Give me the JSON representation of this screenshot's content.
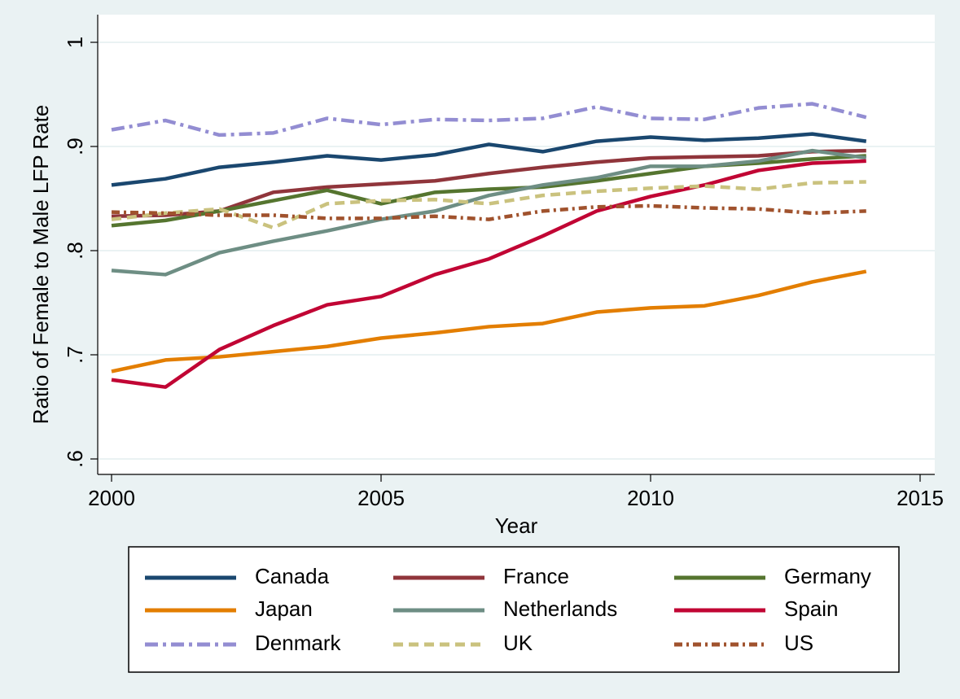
{
  "chart_data": {
    "type": "line",
    "xlabel": "Year",
    "ylabel": "Ratio of Female to Male LFP Rate",
    "x": [
      2000,
      2001,
      2002,
      2003,
      2004,
      2005,
      2006,
      2007,
      2008,
      2009,
      2010,
      2011,
      2012,
      2013,
      2014
    ],
    "xlim": [
      2000,
      2015
    ],
    "xticks": [
      2000,
      2005,
      2010,
      2015
    ],
    "ylim": [
      0.6,
      1
    ],
    "yticks": [
      {
        "value": 0.6,
        "label": ".6"
      },
      {
        "value": 0.7,
        "label": ".7"
      },
      {
        "value": 0.8,
        "label": ".8"
      },
      {
        "value": 0.9,
        "label": ".9"
      },
      1
    ],
    "grid": true,
    "legend": "bottom",
    "series": [
      {
        "name": "Canada",
        "color": "#1a476f",
        "dash": "solid",
        "values": [
          0.863,
          0.869,
          0.88,
          0.885,
          0.891,
          0.887,
          0.892,
          0.902,
          0.895,
          0.905,
          0.909,
          0.906,
          0.908,
          0.912,
          0.905
        ]
      },
      {
        "name": "France",
        "color": "#90353b",
        "dash": "solid",
        "values": [
          0.833,
          0.834,
          0.838,
          0.856,
          0.861,
          0.864,
          0.867,
          0.874,
          0.88,
          0.885,
          0.889,
          0.89,
          0.891,
          0.895,
          0.896
        ]
      },
      {
        "name": "Germany",
        "color": "#55752f",
        "dash": "solid",
        "values": [
          0.824,
          0.829,
          0.838,
          0.848,
          0.858,
          0.845,
          0.856,
          0.859,
          0.861,
          0.867,
          0.874,
          0.881,
          0.884,
          0.888,
          0.891
        ]
      },
      {
        "name": "Japan",
        "color": "#e37e00",
        "dash": "solid",
        "values": [
          0.684,
          0.695,
          0.698,
          0.703,
          0.708,
          0.716,
          0.721,
          0.727,
          0.73,
          0.741,
          0.745,
          0.747,
          0.757,
          0.77,
          0.78
        ]
      },
      {
        "name": "Netherlands",
        "color": "#6e8e84",
        "dash": "solid",
        "values": [
          0.781,
          0.777,
          0.798,
          0.809,
          0.819,
          0.83,
          0.838,
          0.853,
          0.863,
          0.87,
          0.881,
          0.881,
          0.886,
          0.896,
          0.889
        ]
      },
      {
        "name": "Spain",
        "color": "#c10534",
        "dash": "solid",
        "values": [
          0.676,
          0.669,
          0.705,
          0.728,
          0.748,
          0.756,
          0.777,
          0.792,
          0.814,
          0.838,
          0.852,
          0.863,
          0.877,
          0.884,
          0.886
        ]
      },
      {
        "name": "Denmark",
        "color": "#938dd2",
        "dash": "dash-dot",
        "values": [
          0.916,
          0.925,
          0.911,
          0.913,
          0.927,
          0.921,
          0.926,
          0.925,
          0.927,
          0.938,
          0.927,
          0.926,
          0.937,
          0.941,
          0.928
        ]
      },
      {
        "name": "UK",
        "color": "#cac27e",
        "dash": "dash",
        "values": [
          0.83,
          0.836,
          0.84,
          0.822,
          0.845,
          0.848,
          0.849,
          0.845,
          0.853,
          0.857,
          0.86,
          0.862,
          0.859,
          0.865,
          0.866
        ]
      },
      {
        "name": "US",
        "color": "#a0522d",
        "dash": "short-dash-dot",
        "values": [
          0.837,
          0.836,
          0.834,
          0.834,
          0.831,
          0.831,
          0.833,
          0.83,
          0.838,
          0.842,
          0.843,
          0.841,
          0.84,
          0.836,
          0.838
        ]
      }
    ]
  }
}
